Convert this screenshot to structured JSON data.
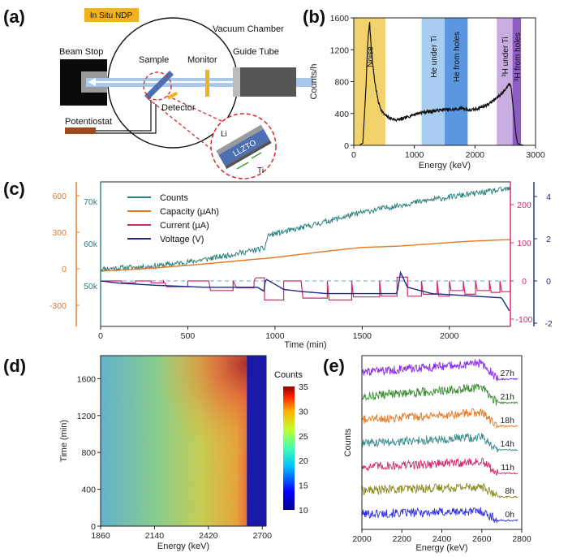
{
  "panel_labels": [
    "(a)",
    "(b)",
    "(c)",
    "(d)",
    "(e)"
  ],
  "panel_a": {
    "badge": "In Situ NDP",
    "vacuum_chamber": "Vacuum Chamber",
    "beam_stop": "Beam Stop",
    "sample": "Sample",
    "monitor": "Monitor",
    "guide_tube": "Guide Tube",
    "detector": "Detector",
    "potentiostat": "Potentiostat",
    "inset_li": "Li",
    "inset_llzto": "LLZTO",
    "inset_ti": "Ti",
    "colors": {
      "badge": "#f0b21f",
      "beam": "#a9c7ea",
      "sample": "#4f6fb3",
      "potentiostat": "#a04a1c",
      "inset_ring": "#d9262c"
    }
  },
  "chart_data": [
    {
      "id": "b",
      "type": "line",
      "xlabel": "Energy (keV)",
      "ylabel": "Counts/h",
      "xlim": [
        0,
        3000
      ],
      "ylim": [
        0,
        1600
      ],
      "xticks": [
        "0",
        "1000",
        "2000",
        "3000"
      ],
      "yticks": [
        "0",
        "400",
        "800",
        "1200",
        "1600"
      ],
      "x": [
        100,
        150,
        200,
        230,
        260,
        300,
        350,
        400,
        450,
        500,
        550,
        600,
        700,
        800,
        900,
        1000,
        1100,
        1200,
        1300,
        1400,
        1500,
        1600,
        1700,
        1800,
        1900,
        2000,
        2100,
        2200,
        2300,
        2400,
        2450,
        2500,
        2550,
        2580,
        2600,
        2620,
        2650,
        2680,
        2700,
        2750,
        2800
      ],
      "y": [
        5,
        30,
        700,
        1280,
        1550,
        1100,
        780,
        560,
        450,
        390,
        360,
        340,
        320,
        330,
        360,
        390,
        410,
        420,
        430,
        440,
        450,
        445,
        455,
        470,
        440,
        450,
        480,
        510,
        560,
        620,
        660,
        700,
        760,
        770,
        720,
        550,
        350,
        120,
        30,
        8,
        3
      ],
      "bands": [
        {
          "label": "Noise",
          "range": [
            0,
            520
          ],
          "color": "#f2d26b"
        },
        {
          "label": "He under Ti",
          "range": [
            1120,
            1500
          ],
          "color": "#a9cdf0"
        },
        {
          "label": "He from holes",
          "range": [
            1500,
            1880
          ],
          "color": "#5b97e0"
        },
        {
          "label": "³H under Ti",
          "range": [
            2360,
            2620
          ],
          "color": "#c8aee0"
        },
        {
          "label": "³H from holes",
          "range": [
            2620,
            2760
          ],
          "color": "#8d5cc4"
        }
      ],
      "line_color": "#111111"
    },
    {
      "id": "c",
      "type": "line",
      "xlabel": "Time (min)",
      "xlim": [
        0,
        2350
      ],
      "xticks": [
        "0",
        "500",
        "1000",
        "1500",
        "2000"
      ],
      "axes": [
        {
          "side": "left-outer",
          "color": "#e87722",
          "ticks": [
            "600",
            "300",
            "0",
            "-300"
          ]
        },
        {
          "side": "left-inner",
          "color": "#2a7f7a",
          "ticks": [
            "70k",
            "60k",
            "50k"
          ]
        },
        {
          "side": "right-inner",
          "color": "#d6246e",
          "ticks": [
            "200",
            "100",
            "0",
            "-100"
          ]
        },
        {
          "side": "right-outer",
          "color": "#1f2a8a",
          "ticks": [
            "4",
            "2",
            "0",
            "-2"
          ]
        }
      ],
      "legend": [
        {
          "name": "Counts",
          "color": "#2a7f7a"
        },
        {
          "name": "Capacity (µAh)",
          "color": "#e87722"
        },
        {
          "name": "Current  (µA)",
          "color": "#d6246e"
        },
        {
          "name": "Voltage  (V)",
          "color": "#1f2a8a"
        }
      ],
      "counts": {
        "x": [
          0,
          100,
          300,
          500,
          700,
          900,
          940,
          960,
          1100,
          1300,
          1500,
          1700,
          1900,
          2100,
          2350
        ],
        "y": [
          54000,
          54200,
          54600,
          55600,
          57000,
          58600,
          58800,
          62000,
          63200,
          65300,
          67400,
          69000,
          70400,
          71600,
          73000
        ]
      },
      "capacity": {
        "x": [
          0,
          300,
          600,
          900,
          950,
          1100,
          1300,
          1500,
          1700,
          1900,
          2100,
          2350
        ],
        "y": [
          -20,
          5,
          40,
          80,
          85,
          110,
          145,
          175,
          185,
          205,
          225,
          240
        ]
      },
      "current": [
        {
          "x": [
            0,
            120
          ],
          "y": 0
        },
        {
          "x": [
            120,
            200
          ],
          "y": -5
        },
        {
          "x": [
            210,
            290
          ],
          "y": 0
        },
        {
          "x": [
            290,
            360
          ],
          "y": -5
        },
        {
          "x": [
            380,
            500
          ],
          "y": -15
        },
        {
          "x": [
            510,
            620
          ],
          "y": 0
        },
        {
          "x": [
            630,
            760
          ],
          "y": -25
        },
        {
          "x": [
            780,
            880
          ],
          "y": -18
        },
        {
          "x": [
            890,
            940
          ],
          "y": 8
        },
        {
          "x": [
            940,
            1050
          ],
          "y": -50
        },
        {
          "x": [
            1060,
            1150
          ],
          "y": 0
        },
        {
          "x": [
            1160,
            1300
          ],
          "y": -45
        },
        {
          "x": [
            1310,
            1440
          ],
          "y": -50
        },
        {
          "x": [
            1450,
            1600
          ],
          "y": -42
        },
        {
          "x": [
            1610,
            1700
          ],
          "y": -40
        },
        {
          "x": [
            1700,
            1760
          ],
          "y": 10
        },
        {
          "x": [
            1760,
            1840
          ],
          "y": -40
        },
        {
          "x": [
            1850,
            1930
          ],
          "y": -35
        },
        {
          "x": [
            1940,
            2000
          ],
          "y": -40
        },
        {
          "x": [
            2010,
            2080
          ],
          "y": -25
        },
        {
          "x": [
            2090,
            2150
          ],
          "y": -35
        },
        {
          "x": [
            2160,
            2230
          ],
          "y": -25
        },
        {
          "x": [
            2240,
            2290
          ],
          "y": -30
        },
        {
          "x": [
            2300,
            2350
          ],
          "y": -28
        }
      ],
      "voltage": {
        "x": [
          0,
          100,
          300,
          600,
          900,
          940,
          945,
          1050,
          1150,
          1300,
          1450,
          1600,
          1700,
          1720,
          1760,
          1900,
          2100,
          2300,
          2350
        ],
        "y": [
          0,
          -0.1,
          -0.2,
          -0.3,
          -0.3,
          -0.5,
          0.1,
          -0.4,
          -0.5,
          -0.6,
          -0.6,
          -0.6,
          -0.6,
          0.4,
          -0.3,
          -0.6,
          -0.7,
          -0.8,
          -1.5
        ]
      }
    },
    {
      "id": "d",
      "type": "heatmap",
      "xlabel": "Energy (keV)",
      "ylabel": "Time (min)",
      "xlim": [
        1860,
        2720
      ],
      "ylim": [
        0,
        1850
      ],
      "xticks": [
        "1860",
        "2140",
        "2420",
        "2700"
      ],
      "yticks": [
        "0",
        "400",
        "800",
        "1200",
        "1600"
      ],
      "colorbar": {
        "label": "Counts",
        "min": 10,
        "max": 35,
        "ticks": [
          "35",
          "30",
          "25",
          "20",
          "15",
          "10"
        ]
      },
      "edge_energy": 2620
    },
    {
      "id": "e",
      "type": "line",
      "xlabel": "Energy (keV)",
      "ylabel": "Counts",
      "xlim": [
        2000,
        2800
      ],
      "xticks": [
        "2000",
        "2200",
        "2400",
        "2600",
        "2800"
      ],
      "series": [
        {
          "name": "0h",
          "color": "#2a2ae8"
        },
        {
          "name": "8h",
          "color": "#8a8a1c"
        },
        {
          "name": "11h",
          "color": "#d6246e"
        },
        {
          "name": "14h",
          "color": "#3a8a8a"
        },
        {
          "name": "18h",
          "color": "#e87722"
        },
        {
          "name": "21h",
          "color": "#3a8a30"
        },
        {
          "name": "27h",
          "color": "#8a2ae8"
        }
      ]
    }
  ]
}
